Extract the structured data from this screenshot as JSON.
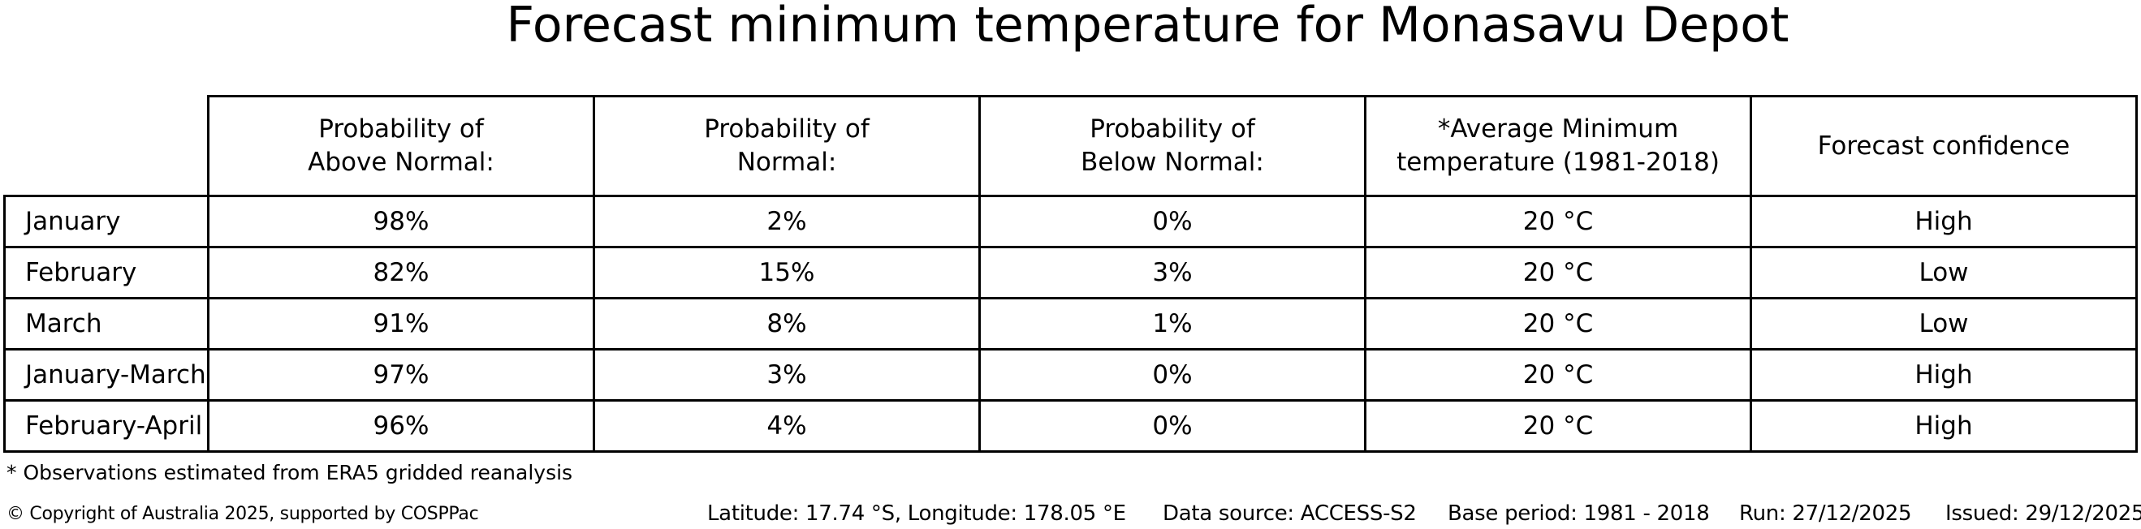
{
  "title": "Forecast minimum temperature for Monasavu Depot",
  "chart_data": {
    "type": "table",
    "title": "Forecast minimum temperature for Monasavu Depot",
    "columns": [
      "Probability of\nAbove Normal:",
      "Probability of\nNormal:",
      "Probability of\nBelow Normal:",
      "*Average Minimum\ntemperature (1981-2018)",
      "Forecast confidence"
    ],
    "rows": [
      {
        "label": "January",
        "cells": [
          "98%",
          "2%",
          "0%",
          "20 °C",
          "High"
        ]
      },
      {
        "label": "February",
        "cells": [
          "82%",
          "15%",
          "3%",
          "20 °C",
          "Low"
        ]
      },
      {
        "label": "March",
        "cells": [
          "91%",
          "8%",
          "1%",
          "20 °C",
          "Low"
        ]
      },
      {
        "label": "January-March",
        "cells": [
          "97%",
          "3%",
          "0%",
          "20 °C",
          "High"
        ]
      },
      {
        "label": "February-April",
        "cells": [
          "96%",
          "4%",
          "0%",
          "20 °C",
          "High"
        ]
      }
    ]
  },
  "footnote": "* Observations estimated from ERA5 gridded reanalysis",
  "footer": {
    "copyright": "© Copyright of Australia 2025, supported by COSPPac",
    "location": "Latitude: 17.74 °S, Longitude: 178.05 °E",
    "data_source": "Data source: ACCESS-S2",
    "base_period": "Base period: 1981 - 2018",
    "run": "Run: 27/12/2025",
    "issued": "Issued: 29/12/2025"
  }
}
